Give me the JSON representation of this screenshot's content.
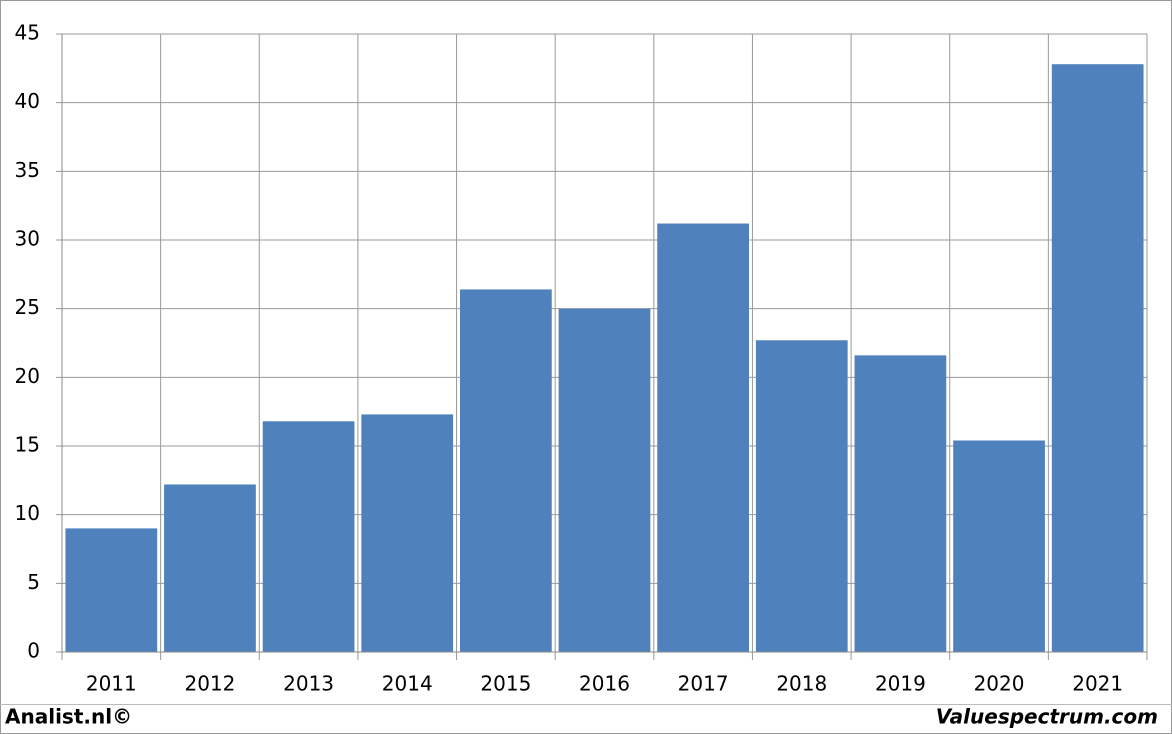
{
  "chart_data": {
    "type": "bar",
    "categories": [
      "2011",
      "2012",
      "2013",
      "2014",
      "2015",
      "2016",
      "2017",
      "2018",
      "2019",
      "2020",
      "2021"
    ],
    "values": [
      9.0,
      12.2,
      16.8,
      17.3,
      26.4,
      25.0,
      31.2,
      22.7,
      21.6,
      15.4,
      42.8
    ],
    "color": "#4f81bd",
    "ylim": [
      0,
      45
    ],
    "yticks": [
      0,
      5,
      10,
      15,
      20,
      25,
      30,
      35,
      40,
      45
    ],
    "grid": true
  },
  "footer": {
    "left": "Analist.nl©",
    "right": "Valuespectrum.com"
  }
}
